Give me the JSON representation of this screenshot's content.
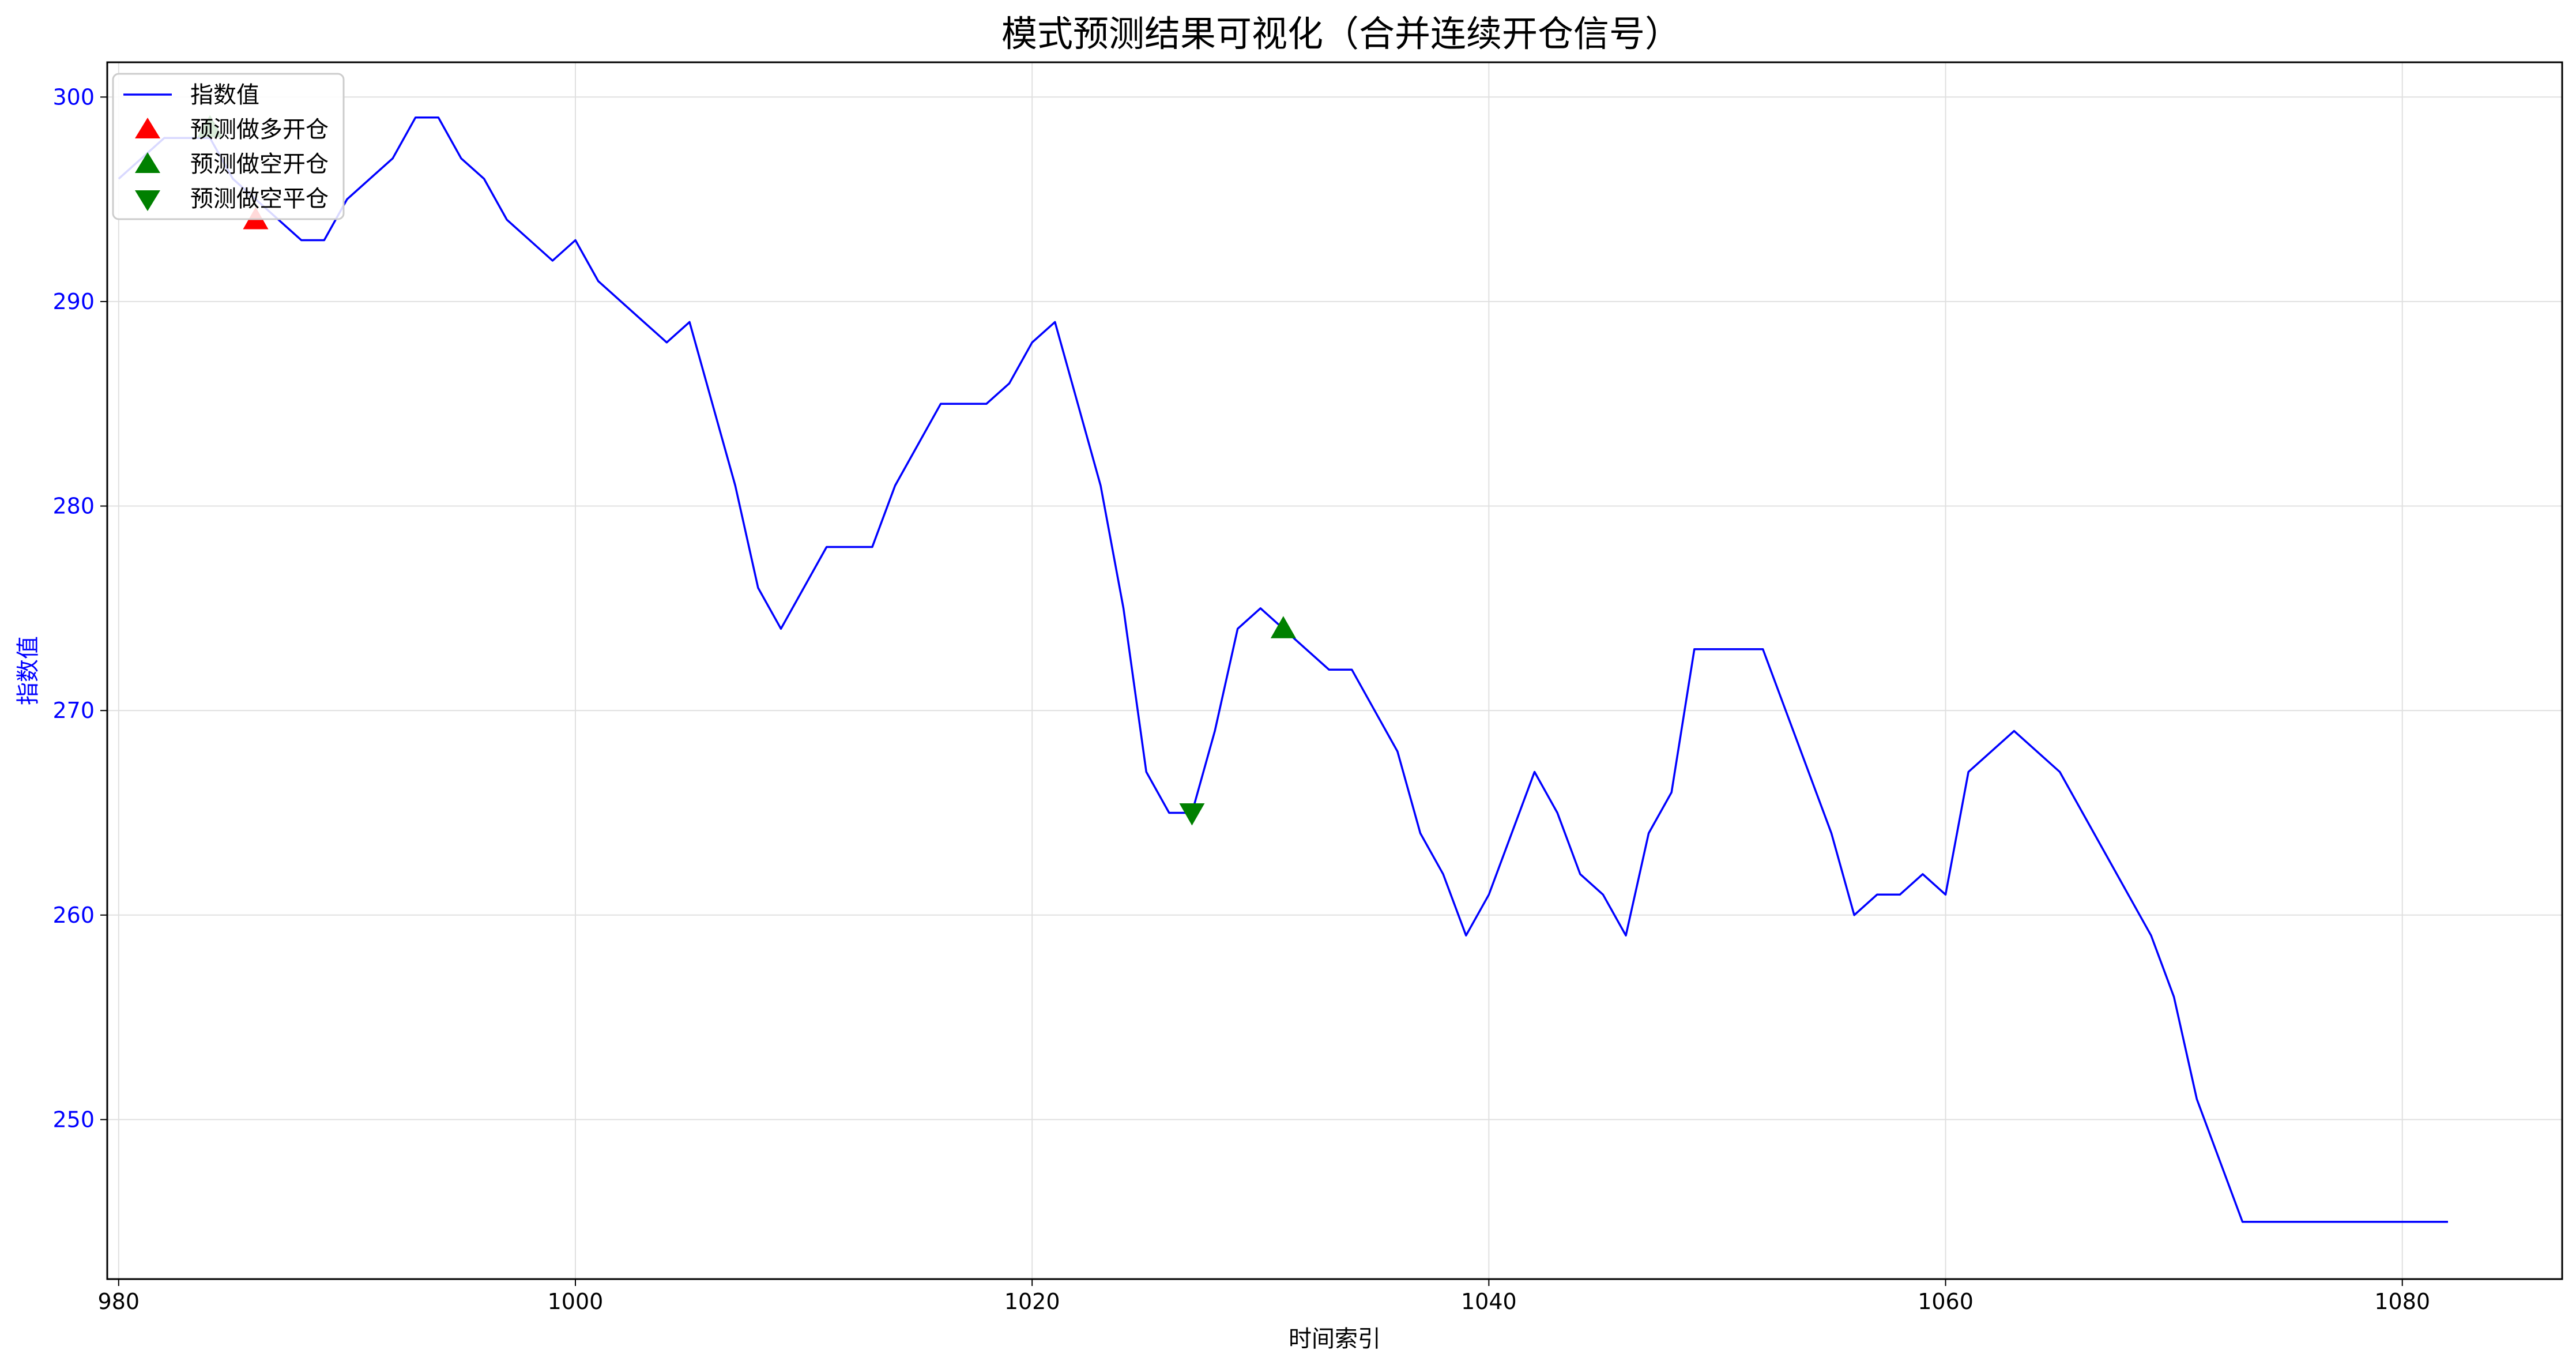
{
  "chart_data": {
    "type": "line",
    "title": "模式预测结果可视化（合并连续开仓信号）",
    "xlabel": "时间索引",
    "ylabel": "指数值",
    "xlim": [
      979.5,
      1087
    ],
    "ylim": [
      242.2,
      301.7
    ],
    "xticks": [
      980,
      1000,
      1020,
      1040,
      1060,
      1080
    ],
    "yticks": [
      250,
      260,
      270,
      280,
      290,
      300
    ],
    "grid": true,
    "legend_position": "upper-left",
    "colors": {
      "line": "#0000ff",
      "long_open": "#ff0000",
      "short_open": "#008000",
      "short_close": "#008000"
    },
    "series": [
      {
        "name": "指数值",
        "x": [
          980,
          981,
          982,
          983,
          984,
          985,
          986,
          987,
          988,
          989,
          990,
          991,
          992,
          993,
          994,
          995,
          996,
          997,
          998,
          999,
          1000,
          1001,
          1002,
          1003,
          1004,
          1005,
          1006,
          1007,
          1008,
          1009,
          1010,
          1011,
          1012,
          1013,
          1014,
          1015,
          1016,
          1017,
          1018,
          1019,
          1020,
          1021,
          1022,
          1023,
          1024,
          1025,
          1026,
          1027,
          1028,
          1029,
          1030,
          1031,
          1032,
          1033,
          1034,
          1035,
          1036,
          1037,
          1038,
          1039,
          1040,
          1041,
          1042,
          1043,
          1044,
          1045,
          1046,
          1047,
          1048,
          1049,
          1050,
          1051,
          1052,
          1053,
          1054,
          1055,
          1056,
          1057,
          1058,
          1059,
          1060,
          1061,
          1062,
          1063,
          1064,
          1065,
          1066,
          1067,
          1068,
          1069,
          1070,
          1071,
          1072,
          1073,
          1074,
          1075,
          1076,
          1077,
          1078,
          1079,
          1080,
          1081,
          1082
        ],
        "y": [
          296,
          297,
          298,
          298,
          298,
          296,
          295,
          294,
          293,
          293,
          295,
          296,
          297,
          299,
          299,
          297,
          296,
          294,
          293,
          292,
          293,
          291,
          290,
          289,
          288,
          289,
          285,
          281,
          276,
          274,
          276,
          278,
          278,
          278,
          281,
          283,
          285,
          285,
          285,
          286,
          288,
          289,
          285,
          281,
          275,
          267,
          265,
          265,
          269,
          274,
          275,
          274,
          273,
          272,
          272,
          270,
          268,
          264,
          262,
          259,
          261,
          264,
          267,
          265,
          262,
          261,
          259,
          264,
          266,
          273,
          273,
          273,
          273,
          270,
          267,
          264,
          260,
          261,
          261,
          262,
          261,
          267,
          268,
          269,
          268,
          267,
          265,
          263,
          261,
          259,
          256,
          251,
          248,
          245,
          245,
          245,
          245,
          245,
          245,
          245,
          245,
          245,
          245
        ]
      },
      {
        "name": "预测做多开仓",
        "x": [
          986
        ],
        "y": [
          294
        ]
      },
      {
        "name": "预测做空开仓",
        "x": [
          984,
          1031
        ],
        "y": [
          298.5,
          274
        ]
      },
      {
        "name": "预测做空平仓",
        "x": [
          1027
        ],
        "y": [
          265
        ]
      }
    ]
  }
}
